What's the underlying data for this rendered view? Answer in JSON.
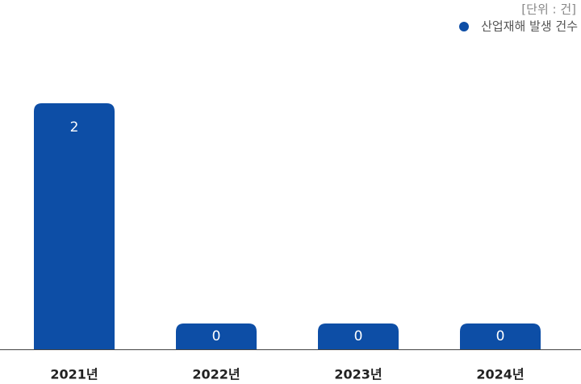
{
  "unit": "[단위 : 건]",
  "chart_data": {
    "type": "bar",
    "categories": [
      "2021년",
      "2022년",
      "2023년",
      "2024년"
    ],
    "series": [
      {
        "name": "산업재해 발생 건수",
        "color": "#0d4ea6",
        "values": [
          2,
          0,
          0,
          0
        ]
      }
    ]
  }
}
